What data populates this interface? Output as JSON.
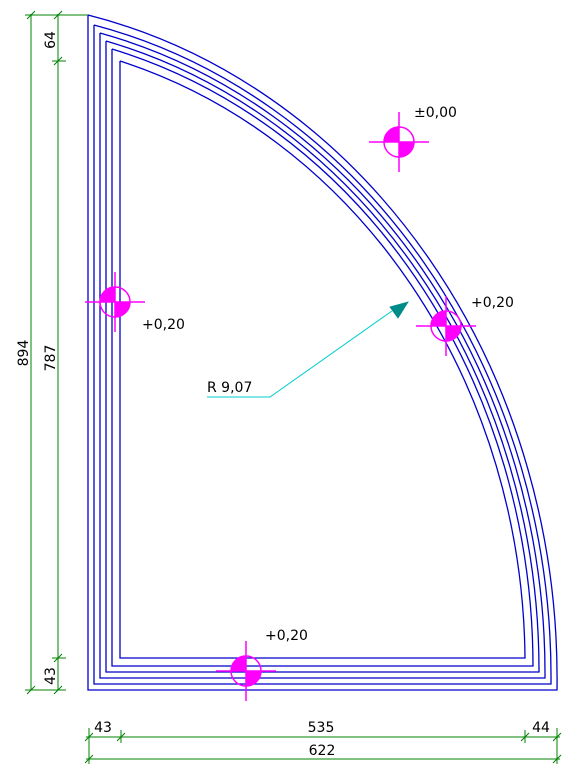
{
  "dimensions": {
    "vertical_total": "894",
    "vertical_top": "64",
    "vertical_inner": "787",
    "vertical_bottom": "43",
    "horizontal_left": "43",
    "horizontal_inner": "535",
    "horizontal_right": "44",
    "horizontal_total": "622"
  },
  "radius_label": "R 9,07",
  "elevations": {
    "top": "±0,00",
    "left": "+0,20",
    "right": "+0,20",
    "bottom": "+0,20"
  },
  "colors": {
    "outline": "#0000CC",
    "dimension_lines": "#008000",
    "leader": "#00CCCC",
    "marker": "#FF00FF",
    "text": "#000000"
  }
}
